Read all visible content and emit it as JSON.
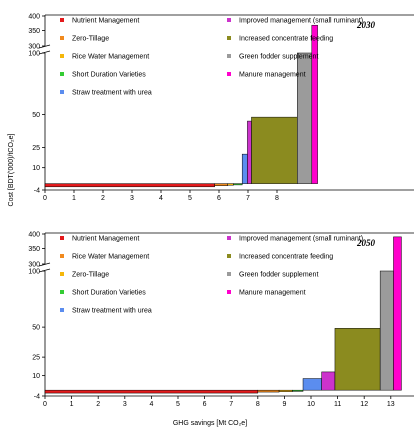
{
  "figure": {
    "ylabel": "Cost [BDT('000)/tCO₂e]",
    "xlabel": "GHG savings [Mt CO₂e]"
  },
  "chart_data": [
    {
      "type": "bar",
      "year": "2030",
      "x_ticks": [
        "0",
        "1",
        "2",
        "3",
        "4",
        "5",
        "6",
        "7",
        "8"
      ],
      "y_ticks": [
        "-4",
        "10",
        "25",
        "50",
        "100",
        "300",
        "350",
        "400"
      ],
      "ylim": [
        -4,
        400
      ],
      "legend": [
        {
          "name": "Nutrient Management",
          "color": "#e41a1c"
        },
        {
          "name": "Zero-Tillage",
          "color": "#f18a1e"
        },
        {
          "name": "Rice Water Management",
          "color": "#f5b70a"
        },
        {
          "name": "Short Duration Varieties",
          "color": "#33cc33"
        },
        {
          "name": "Straw treatment with urea",
          "color": "#5b8def"
        },
        {
          "name": "Improved management (small ruminant)",
          "color": "#cc33cc"
        },
        {
          "name": "Increased concentrate feeding",
          "color": "#8b8b1f"
        },
        {
          "name": "Green fodder supplement",
          "color": "#9b9b9b"
        },
        {
          "name": "Manure management",
          "color": "#ff00cc"
        }
      ],
      "bars": [
        {
          "name": "Nutrient Management",
          "x0": 0,
          "x1": 5.85,
          "cost": -2,
          "color": "#e41a1c"
        },
        {
          "name": "Zero-Tillage",
          "x0": 5.85,
          "x1": 6.3,
          "cost": -1.3,
          "color": "#f18a1e"
        },
        {
          "name": "Rice Water Management",
          "x0": 6.3,
          "x1": 6.5,
          "cost": -1.0,
          "color": "#f5b70a"
        },
        {
          "name": "Short Duration Varieties",
          "x0": 6.5,
          "x1": 6.8,
          "cost": -0.8,
          "color": "#33cc33"
        },
        {
          "name": "Straw treatment with urea",
          "x0": 6.8,
          "x1": 6.98,
          "cost": 20,
          "color": "#5b8def"
        },
        {
          "name": "Improved management (small ruminant)",
          "x0": 6.98,
          "x1": 7.12,
          "cost": 45,
          "color": "#cc33cc"
        },
        {
          "name": "Increased concentrate feeding",
          "x0": 7.12,
          "x1": 8.7,
          "cost": 48,
          "color": "#8b8b1f"
        },
        {
          "name": "Green fodder supplement",
          "x0": 8.7,
          "x1": 9.2,
          "cost": 125,
          "color": "#9b9b9b"
        },
        {
          "name": "Manure management",
          "x0": 9.2,
          "x1": 9.4,
          "cost": 368,
          "color": "#ff00cc"
        }
      ]
    },
    {
      "type": "bar",
      "year": "2050",
      "x_ticks": [
        "0",
        "1",
        "2",
        "3",
        "4",
        "5",
        "6",
        "7",
        "8",
        "9",
        "10",
        "11",
        "12",
        "13"
      ],
      "y_ticks": [
        "-4",
        "10",
        "25",
        "50",
        "100",
        "300",
        "350",
        "400"
      ],
      "ylim": [
        -4,
        400
      ],
      "legend": [
        {
          "name": "Nutrient Management",
          "color": "#e41a1c"
        },
        {
          "name": "Rice Water Management",
          "color": "#f18a1e"
        },
        {
          "name": "Zero-Tillage",
          "color": "#f5b70a"
        },
        {
          "name": "Short Duration Varieties",
          "color": "#33cc33"
        },
        {
          "name": "Straw treatment with urea",
          "color": "#5b8def"
        },
        {
          "name": "Improved management (small ruminant)",
          "color": "#cc33cc"
        },
        {
          "name": "Increased concentrate feeding",
          "color": "#8b8b1f"
        },
        {
          "name": "Green fodder supplement",
          "color": "#9b9b9b"
        },
        {
          "name": "Manure management",
          "color": "#ff00cc"
        }
      ],
      "bars": [
        {
          "name": "Nutrient Management",
          "x0": 0,
          "x1": 8.0,
          "cost": -2,
          "color": "#e41a1c"
        },
        {
          "name": "Rice Water Management",
          "x0": 8.0,
          "x1": 8.8,
          "cost": -1.3,
          "color": "#f18a1e"
        },
        {
          "name": "Zero-Tillage",
          "x0": 8.8,
          "x1": 9.3,
          "cost": -1.0,
          "color": "#f5b70a"
        },
        {
          "name": "Short Duration Varieties",
          "x0": 9.3,
          "x1": 9.7,
          "cost": -0.8,
          "color": "#33cc33"
        },
        {
          "name": "Straw treatment with urea",
          "x0": 9.7,
          "x1": 10.4,
          "cost": 8,
          "color": "#5b8def"
        },
        {
          "name": "Improved management (small ruminant)",
          "x0": 10.4,
          "x1": 10.9,
          "cost": 13,
          "color": "#cc33cc"
        },
        {
          "name": "Increased concentrate feeding",
          "x0": 10.9,
          "x1": 12.6,
          "cost": 49,
          "color": "#8b8b1f"
        },
        {
          "name": "Green fodder supplement",
          "x0": 12.6,
          "x1": 13.1,
          "cost": 132,
          "color": "#9b9b9b"
        },
        {
          "name": "Manure management",
          "x0": 13.1,
          "x1": 13.4,
          "cost": 390,
          "color": "#ff00cc"
        }
      ]
    }
  ]
}
